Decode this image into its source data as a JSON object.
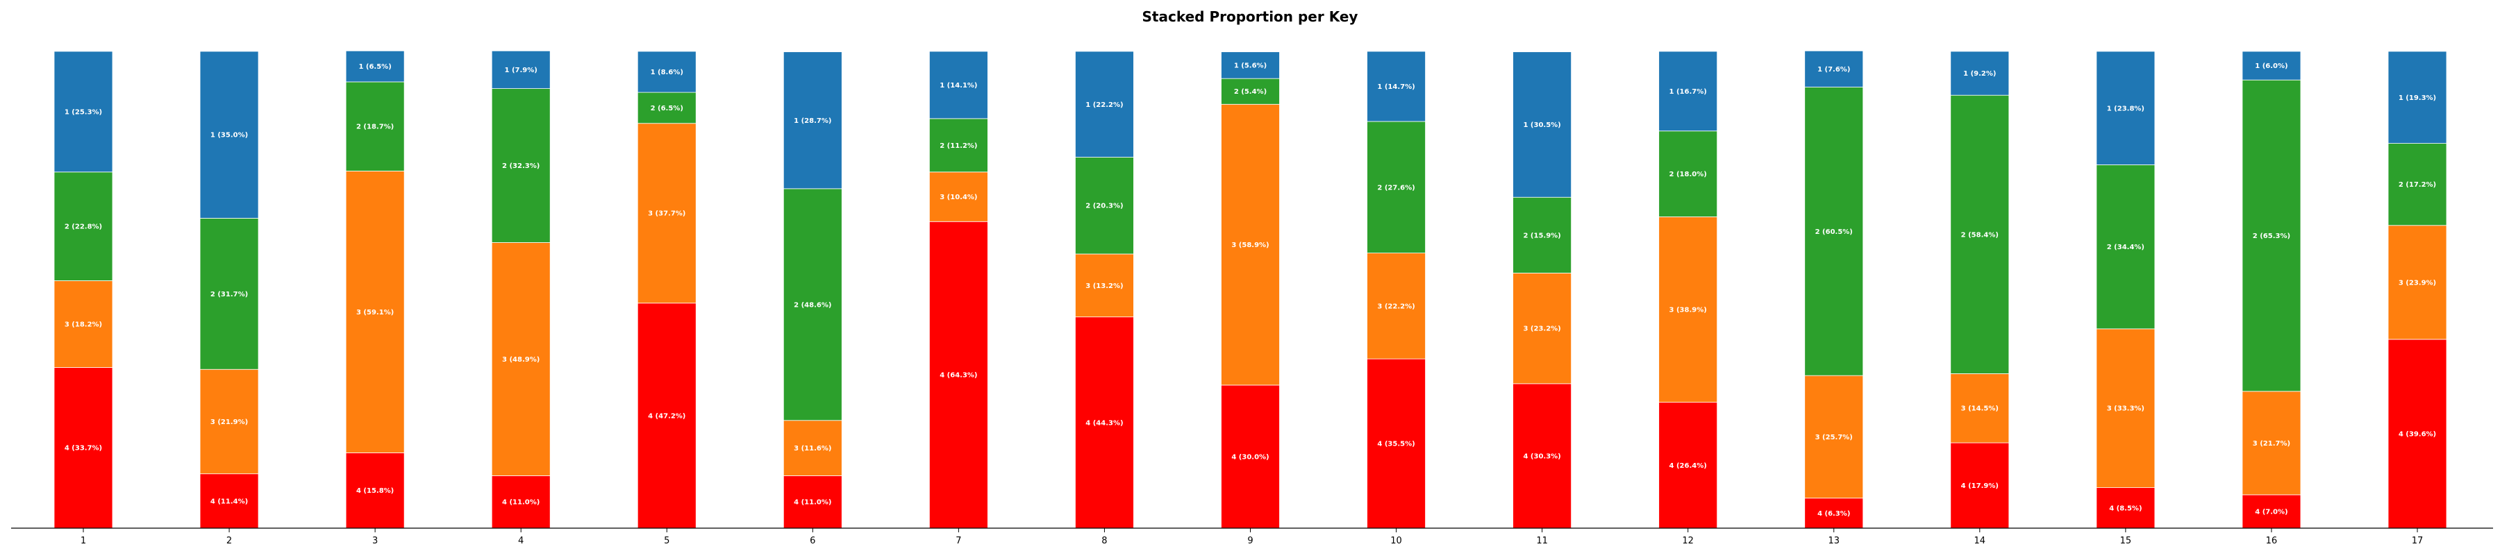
{
  "chart_data": {
    "type": "bar",
    "stacked": true,
    "title": "Stacked Proportion per Key",
    "xlabel": "",
    "ylabel": "",
    "ylim": [
      0,
      100
    ],
    "grid": false,
    "categories": [
      "1",
      "2",
      "3",
      "4",
      "5",
      "6",
      "7",
      "8",
      "9",
      "10",
      "11",
      "12",
      "13",
      "14",
      "15",
      "16",
      "17"
    ],
    "series": [
      {
        "name": "4",
        "color": "#ff0000",
        "values": [
          33.7,
          11.4,
          15.8,
          11.0,
          47.2,
          11.0,
          64.3,
          44.3,
          30.0,
          35.5,
          30.3,
          26.4,
          6.3,
          17.9,
          8.5,
          7.0,
          39.6
        ],
        "labels": [
          "4 (33.7%)",
          "4 (11.4%)",
          "4 (15.8%)",
          "4 (11.0%)",
          "4 (47.2%)",
          "4 (11.0%)",
          "4 (64.3%)",
          "4 (44.3%)",
          "4 (30.0%)",
          "4 (35.5%)",
          "4 (30.3%)",
          "4 (26.4%)",
          "4 (6.3%)",
          "4 (17.9%)",
          "4 (8.5%)",
          "4 (7.0%)",
          "4 (39.6%)"
        ]
      },
      {
        "name": "3",
        "color": "#ff7f0e",
        "values": [
          18.2,
          21.9,
          59.1,
          48.9,
          37.7,
          11.6,
          10.4,
          13.2,
          58.9,
          22.2,
          23.2,
          38.9,
          25.7,
          14.5,
          33.3,
          21.7,
          23.9
        ],
        "labels": [
          "3 (18.2%)",
          "3 (21.9%)",
          "3 (59.1%)",
          "3 (48.9%)",
          "3 (37.7%)",
          "3 (11.6%)",
          "3 (10.4%)",
          "3 (13.2%)",
          "3 (58.9%)",
          "3 (22.2%)",
          "3 (23.2%)",
          "3 (38.9%)",
          "3 (25.7%)",
          "3 (14.5%)",
          "3 (33.3%)",
          "3 (21.7%)",
          "3 (23.9%)"
        ]
      },
      {
        "name": "2",
        "color": "#2ca02c",
        "values": [
          22.8,
          31.7,
          18.7,
          32.3,
          6.5,
          48.6,
          11.2,
          20.3,
          5.4,
          27.6,
          15.9,
          18.0,
          60.5,
          58.4,
          34.4,
          65.3,
          17.2
        ],
        "labels": [
          "2 (22.8%)",
          "2 (31.7%)",
          "2 (18.7%)",
          "2 (32.3%)",
          "2 (6.5%)",
          "2 (48.6%)",
          "2 (11.2%)",
          "2 (20.3%)",
          "2 (5.4%)",
          "2 (27.6%)",
          "2 (15.9%)",
          "2 (18.0%)",
          "2 (60.5%)",
          "2 (58.4%)",
          "2 (34.4%)",
          "2 (65.3%)",
          "2 (17.2%)"
        ]
      },
      {
        "name": "1",
        "color": "#1f77b4",
        "values": [
          25.3,
          35.0,
          6.5,
          7.9,
          8.6,
          28.7,
          14.1,
          22.2,
          5.6,
          14.7,
          30.5,
          16.7,
          7.6,
          9.2,
          23.8,
          6.0,
          19.3
        ],
        "labels": [
          "1 (25.3%)",
          "1 (35.0%)",
          "1 (6.5%)",
          "1 (7.9%)",
          "1 (8.6%)",
          "1 (28.7%)",
          "1 (14.1%)",
          "1 (22.2%)",
          "1 (5.6%)",
          "1 (14.7%)",
          "1 (30.5%)",
          "1 (16.7%)",
          "1 (7.6%)",
          "1 (9.2%)",
          "1 (23.8%)",
          "1 (6.0%)",
          "1 (19.3%)"
        ]
      }
    ]
  }
}
